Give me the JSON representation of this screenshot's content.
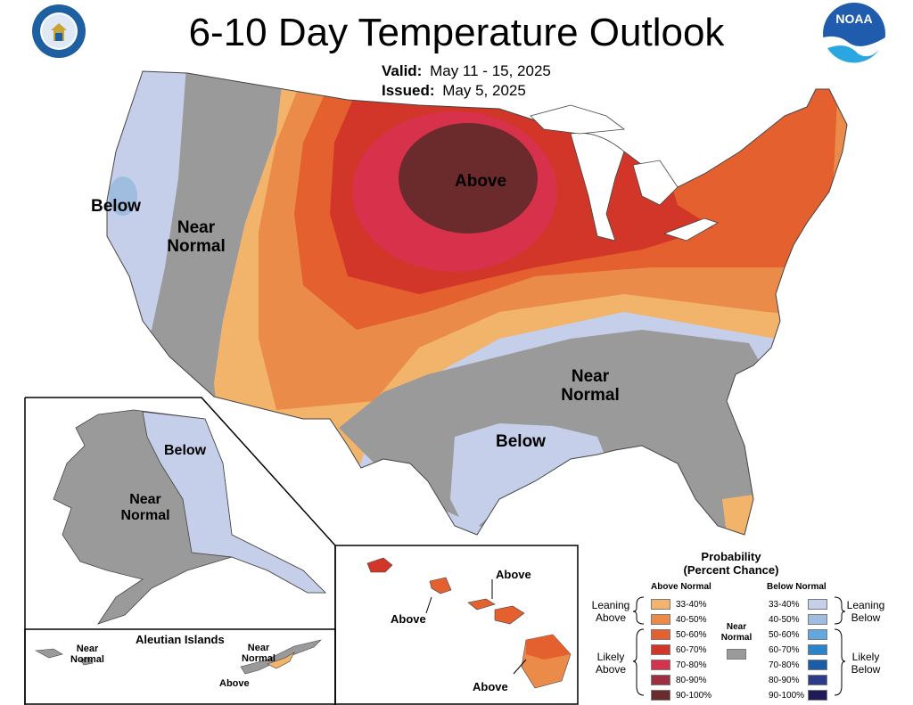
{
  "title": "6-10 Day Temperature Outlook",
  "valid_label": "Valid:",
  "valid_value": "May 11 - 15, 2025",
  "issued_label": "Issued:",
  "issued_value": "May 5, 2025",
  "logos": {
    "left": "department-of-commerce-seal",
    "right": "noaa-logo"
  },
  "regions": {
    "above_north": "Above",
    "below_west": "Below",
    "near_west": "Near Normal",
    "near_southeast": "Near Normal",
    "below_texas": "Below",
    "ak_below": "Below",
    "ak_near": "Near Normal",
    "hi_above_1": "Above",
    "hi_above_2": "Above",
    "hi_above_3": "Above"
  },
  "aleutian": {
    "title": "Aleutian Islands",
    "near_left": "Near Normal",
    "near_right": "Near Normal",
    "above": "Above"
  },
  "legend": {
    "title": "Probability",
    "subtitle": "(Percent Chance)",
    "above_header": "Above Normal",
    "below_header": "Below Normal",
    "near_label": "Near Normal",
    "near_color": "#9a9a9a",
    "leaning_above": "Leaning Above",
    "likely_above": "Likely Above",
    "leaning_below": "Leaning Below",
    "likely_below": "Likely Below",
    "above": [
      {
        "label": "33-40%",
        "color": "#f2b36b"
      },
      {
        "label": "40-50%",
        "color": "#ea8b4a"
      },
      {
        "label": "50-60%",
        "color": "#e4602f"
      },
      {
        "label": "60-70%",
        "color": "#d23628"
      },
      {
        "label": "70-80%",
        "color": "#d8314b"
      },
      {
        "label": "80-90%",
        "color": "#9e2f3e"
      },
      {
        "label": "90-100%",
        "color": "#6b2a2c"
      }
    ],
    "below": [
      {
        "label": "33-40%",
        "color": "#c6cfe9"
      },
      {
        "label": "40-50%",
        "color": "#9ebddf"
      },
      {
        "label": "50-60%",
        "color": "#5fa9df"
      },
      {
        "label": "60-70%",
        "color": "#2b83c8"
      },
      {
        "label": "70-80%",
        "color": "#1a5ca8"
      },
      {
        "label": "80-90%",
        "color": "#2c3c89"
      },
      {
        "label": "90-100%",
        "color": "#1f1a5a"
      }
    ]
  }
}
